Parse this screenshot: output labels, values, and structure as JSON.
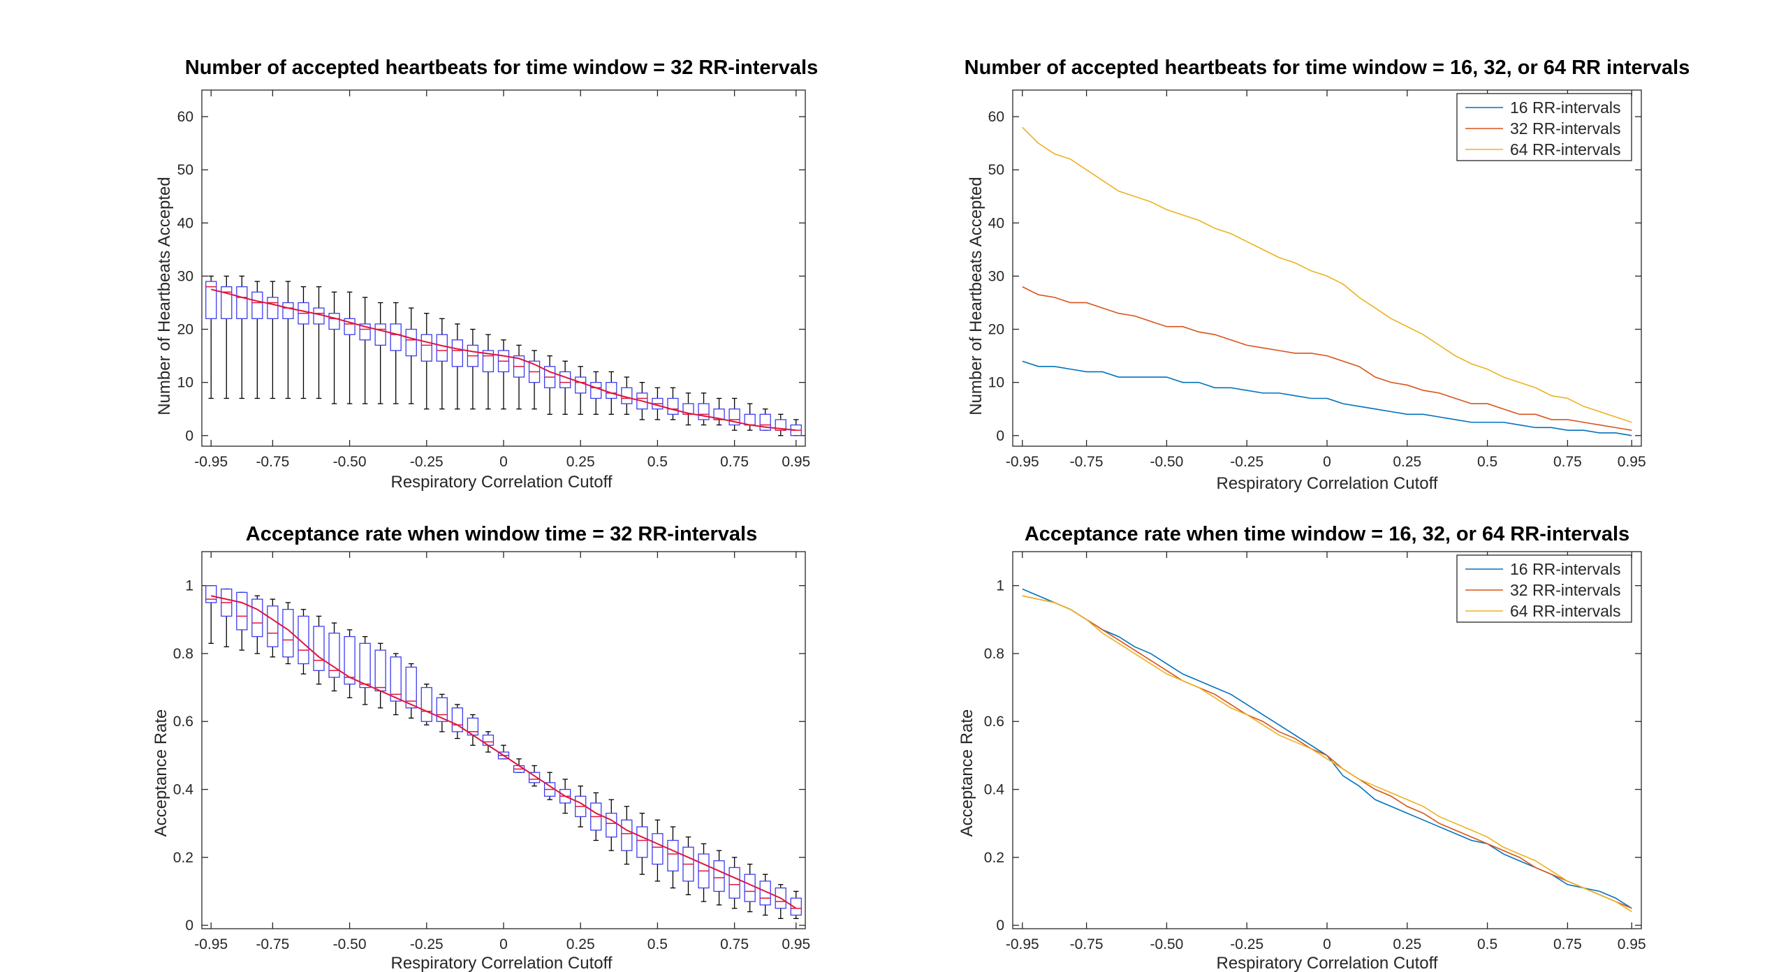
{
  "colors": {
    "series": [
      "#0072BD",
      "#D95319",
      "#EDB120"
    ],
    "median": "#E0143C",
    "box": "#3C3CF0",
    "whisker": "#000000",
    "axis": "#262626",
    "background": "#ffffff"
  },
  "chart_data": [
    {
      "id": "p1",
      "type": "box",
      "title": "Number of accepted heartbeats for time window = 32 RR-intervals",
      "xlabel": "Respiratory Correlation Cutoff",
      "ylabel": "Number of Heartbeats Accepted",
      "xlim": [
        -0.98,
        0.98
      ],
      "ylim": [
        -2,
        65
      ],
      "xticks": [
        -0.95,
        -0.75,
        -0.5,
        -0.25,
        0,
        0.25,
        0.5,
        0.75,
        0.95
      ],
      "xticklabels": [
        "-0.95",
        "-0.75",
        "-0.50",
        "-0.25",
        "0",
        "0.25",
        "0.5",
        "0.75",
        "0.95"
      ],
      "yticks": [
        0,
        10,
        20,
        30,
        40,
        50,
        60
      ],
      "yticklabels": [
        "0",
        "10",
        "20",
        "30",
        "40",
        "50",
        "60"
      ],
      "box_x": [
        -0.95,
        -0.9,
        -0.85,
        -0.8,
        -0.75,
        -0.7,
        -0.65,
        -0.6,
        -0.55,
        -0.5,
        -0.45,
        -0.4,
        -0.35,
        -0.3,
        -0.25,
        -0.2,
        -0.15,
        -0.1,
        -0.05,
        0.0,
        0.05,
        0.1,
        0.15,
        0.2,
        0.25,
        0.3,
        0.35,
        0.4,
        0.45,
        0.5,
        0.55,
        0.6,
        0.65,
        0.7,
        0.75,
        0.8,
        0.85,
        0.9,
        0.95
      ],
      "whisker_low": [
        7,
        7,
        7,
        7,
        7,
        7,
        7,
        7,
        6,
        6,
        6,
        6,
        6,
        6,
        5,
        5,
        5,
        5,
        5,
        5,
        5,
        5,
        4,
        4,
        4,
        4,
        4,
        4,
        3,
        3,
        3,
        2,
        2,
        2,
        1,
        1,
        1,
        0,
        0
      ],
      "q1": [
        22,
        22,
        22,
        22,
        22,
        22,
        21,
        21,
        20,
        19,
        18,
        17,
        16,
        15,
        14,
        14,
        13,
        13,
        12,
        12,
        11,
        10,
        9,
        9,
        8,
        7,
        7,
        6,
        5,
        5,
        4,
        4,
        3,
        3,
        2,
        2,
        1,
        1,
        0
      ],
      "median": [
        28,
        27,
        26,
        25,
        25,
        24,
        23,
        23,
        22,
        21,
        20,
        20,
        19,
        18,
        17,
        16,
        16,
        15,
        15,
        14,
        13,
        12,
        11,
        10,
        10,
        9,
        8,
        7,
        7,
        6,
        5,
        4,
        4,
        3,
        3,
        2,
        2,
        1,
        1
      ],
      "q3": [
        29,
        28,
        28,
        27,
        26,
        25,
        25,
        24,
        23,
        22,
        21,
        21,
        21,
        20,
        19,
        19,
        18,
        17,
        16,
        16,
        15,
        14,
        13,
        12,
        11,
        10,
        10,
        9,
        8,
        7,
        7,
        6,
        6,
        5,
        5,
        4,
        4,
        3,
        2
      ],
      "whisker_high": [
        30,
        30,
        30,
        29,
        29,
        29,
        28,
        28,
        27,
        27,
        26,
        25,
        25,
        24,
        23,
        22,
        21,
        20,
        19,
        18,
        17,
        16,
        15,
        14,
        13,
        12,
        12,
        11,
        10,
        9,
        9,
        8,
        8,
        7,
        7,
        6,
        5,
        4,
        3
      ],
      "median_line": [
        27.5,
        26.8,
        26.0,
        25.3,
        24.7,
        24.0,
        23.4,
        22.8,
        22.1,
        21.3,
        20.5,
        19.8,
        19.1,
        18.3,
        17.6,
        16.9,
        16.3,
        15.8,
        15.4,
        15.0,
        14.5,
        13.4,
        12.0,
        11.0,
        10.0,
        9.0,
        8.0,
        7.2,
        6.5,
        5.7,
        4.9,
        4.2,
        3.7,
        3.2,
        2.6,
        2.0,
        1.6,
        1.3,
        1.0
      ]
    },
    {
      "id": "p2",
      "type": "line",
      "title": "Number of accepted heartbeats for time window = 16, 32, or 64 RR intervals",
      "xlabel": "Respiratory Correlation Cutoff",
      "ylabel": "Number of Heartbeats Accepted",
      "xlim": [
        -0.98,
        0.98
      ],
      "ylim": [
        -2,
        65
      ],
      "xticks": [
        -0.95,
        -0.75,
        -0.5,
        -0.25,
        0,
        0.25,
        0.5,
        0.75,
        0.95
      ],
      "xticklabels": [
        "-0.95",
        "-0.75",
        "-0.50",
        "-0.25",
        "0",
        "0.25",
        "0.5",
        "0.75",
        "0.95"
      ],
      "yticks": [
        0,
        10,
        20,
        30,
        40,
        50,
        60
      ],
      "yticklabels": [
        "0",
        "10",
        "20",
        "30",
        "40",
        "50",
        "60"
      ],
      "x": [
        -0.95,
        -0.9,
        -0.85,
        -0.8,
        -0.75,
        -0.7,
        -0.65,
        -0.6,
        -0.55,
        -0.5,
        -0.45,
        -0.4,
        -0.35,
        -0.3,
        -0.25,
        -0.2,
        -0.15,
        -0.1,
        -0.05,
        0.0,
        0.05,
        0.1,
        0.15,
        0.2,
        0.25,
        0.3,
        0.35,
        0.4,
        0.45,
        0.5,
        0.55,
        0.6,
        0.65,
        0.7,
        0.75,
        0.8,
        0.85,
        0.9,
        0.95
      ],
      "series": [
        {
          "name": "16 RR-intervals",
          "values": [
            14,
            13,
            13,
            12.5,
            12,
            12,
            11,
            11,
            11,
            11,
            10,
            10,
            9,
            9,
            8.5,
            8,
            8,
            7.5,
            7,
            7,
            6,
            5.5,
            5,
            4.5,
            4,
            4,
            3.5,
            3,
            2.5,
            2.5,
            2.5,
            2,
            1.5,
            1.5,
            1,
            1,
            0.5,
            0.5,
            0
          ]
        },
        {
          "name": "32 RR-intervals",
          "values": [
            28,
            26.5,
            26,
            25,
            25,
            24,
            23,
            22.5,
            21.5,
            20.5,
            20.5,
            19.5,
            19,
            18,
            17,
            16.5,
            16,
            15.5,
            15.5,
            15,
            14,
            13,
            11,
            10,
            9.5,
            8.5,
            8,
            7,
            6,
            6,
            5,
            4,
            4,
            3,
            3,
            2.5,
            2,
            1.5,
            1
          ]
        },
        {
          "name": "64 RR-intervals",
          "values": [
            58,
            55,
            53,
            52,
            50,
            48,
            46,
            45,
            44,
            42.5,
            41.5,
            40.5,
            39,
            38,
            36.5,
            35,
            33.5,
            32.5,
            31,
            30,
            28.5,
            26,
            24,
            22,
            20.5,
            19,
            17,
            15,
            13.5,
            12.5,
            11,
            10,
            9,
            7.5,
            7,
            5.5,
            4.5,
            3.5,
            2.5
          ]
        }
      ],
      "legend": [
        "16 RR-intervals",
        "32 RR-intervals",
        "64 RR-intervals"
      ],
      "legend_position": "top-right"
    },
    {
      "id": "p3",
      "type": "box",
      "title": "Acceptance rate when window time = 32 RR-intervals",
      "xlabel": "Respiratory Correlation Cutoff",
      "ylabel": "Acceptance Rate",
      "xlim": [
        -0.98,
        0.98
      ],
      "ylim": [
        -0.01,
        1.1
      ],
      "xticks": [
        -0.95,
        -0.75,
        -0.5,
        -0.25,
        0,
        0.25,
        0.5,
        0.75,
        0.95
      ],
      "xticklabels": [
        "-0.95",
        "-0.75",
        "-0.50",
        "-0.25",
        "0",
        "0.25",
        "0.5",
        "0.75",
        "0.95"
      ],
      "yticks": [
        0,
        0.2,
        0.4,
        0.6,
        0.8,
        1
      ],
      "yticklabels": [
        "0",
        "0.2",
        "0.4",
        "0.6",
        "0.8",
        "1"
      ],
      "box_x": [
        -0.95,
        -0.9,
        -0.85,
        -0.8,
        -0.75,
        -0.7,
        -0.65,
        -0.6,
        -0.55,
        -0.5,
        -0.45,
        -0.4,
        -0.35,
        -0.3,
        -0.25,
        -0.2,
        -0.15,
        -0.1,
        -0.05,
        0.0,
        0.05,
        0.1,
        0.15,
        0.2,
        0.25,
        0.3,
        0.35,
        0.4,
        0.45,
        0.5,
        0.55,
        0.6,
        0.65,
        0.7,
        0.75,
        0.8,
        0.85,
        0.9,
        0.95
      ],
      "whisker_low": [
        0.83,
        0.82,
        0.81,
        0.8,
        0.79,
        0.77,
        0.74,
        0.71,
        0.69,
        0.67,
        0.65,
        0.64,
        0.62,
        0.61,
        0.59,
        0.57,
        0.55,
        0.53,
        0.51,
        0.49,
        0.45,
        0.41,
        0.37,
        0.33,
        0.29,
        0.25,
        0.22,
        0.18,
        0.15,
        0.13,
        0.11,
        0.09,
        0.07,
        0.06,
        0.05,
        0.04,
        0.03,
        0.02,
        0.02
      ],
      "q1": [
        0.95,
        0.91,
        0.87,
        0.85,
        0.82,
        0.79,
        0.77,
        0.75,
        0.73,
        0.71,
        0.7,
        0.69,
        0.66,
        0.64,
        0.6,
        0.6,
        0.57,
        0.56,
        0.53,
        0.49,
        0.45,
        0.42,
        0.38,
        0.36,
        0.32,
        0.28,
        0.26,
        0.22,
        0.2,
        0.18,
        0.16,
        0.13,
        0.11,
        0.1,
        0.08,
        0.07,
        0.06,
        0.05,
        0.03
      ],
      "median": [
        0.96,
        0.95,
        0.91,
        0.89,
        0.86,
        0.84,
        0.81,
        0.78,
        0.75,
        0.73,
        0.71,
        0.7,
        0.68,
        0.66,
        0.63,
        0.62,
        0.59,
        0.57,
        0.54,
        0.5,
        0.46,
        0.43,
        0.4,
        0.38,
        0.35,
        0.32,
        0.3,
        0.27,
        0.25,
        0.23,
        0.21,
        0.18,
        0.16,
        0.14,
        0.12,
        0.1,
        0.08,
        0.07,
        0.05
      ],
      "q3": [
        1.0,
        0.99,
        0.98,
        0.96,
        0.94,
        0.93,
        0.91,
        0.88,
        0.86,
        0.85,
        0.83,
        0.81,
        0.79,
        0.76,
        0.7,
        0.67,
        0.64,
        0.61,
        0.56,
        0.51,
        0.47,
        0.45,
        0.42,
        0.4,
        0.38,
        0.36,
        0.33,
        0.31,
        0.29,
        0.27,
        0.25,
        0.23,
        0.21,
        0.19,
        0.17,
        0.15,
        0.13,
        0.11,
        0.08
      ],
      "whisker_high": [
        1.0,
        0.99,
        0.98,
        0.97,
        0.96,
        0.95,
        0.93,
        0.91,
        0.89,
        0.87,
        0.85,
        0.83,
        0.8,
        0.77,
        0.71,
        0.68,
        0.65,
        0.62,
        0.57,
        0.53,
        0.49,
        0.47,
        0.45,
        0.43,
        0.41,
        0.39,
        0.37,
        0.35,
        0.33,
        0.31,
        0.29,
        0.26,
        0.24,
        0.22,
        0.2,
        0.18,
        0.15,
        0.12,
        0.1
      ],
      "median_line": [
        0.97,
        0.96,
        0.95,
        0.93,
        0.9,
        0.87,
        0.83,
        0.79,
        0.76,
        0.73,
        0.71,
        0.69,
        0.67,
        0.65,
        0.63,
        0.61,
        0.59,
        0.56,
        0.53,
        0.5,
        0.47,
        0.44,
        0.41,
        0.38,
        0.36,
        0.33,
        0.31,
        0.28,
        0.26,
        0.24,
        0.22,
        0.2,
        0.18,
        0.16,
        0.14,
        0.12,
        0.1,
        0.08,
        0.05
      ]
    },
    {
      "id": "p4",
      "type": "line",
      "title": "Acceptance rate when time window = 16, 32, or 64 RR-intervals",
      "xlabel": "Respiratory Correlation Cutoff",
      "ylabel": "Acceptance Rate",
      "xlim": [
        -0.98,
        0.98
      ],
      "ylim": [
        -0.01,
        1.1
      ],
      "xticks": [
        -0.95,
        -0.75,
        -0.5,
        -0.25,
        0,
        0.25,
        0.5,
        0.75,
        0.95
      ],
      "xticklabels": [
        "-0.95",
        "-0.75",
        "-0.50",
        "-0.25",
        "0",
        "0.25",
        "0.5",
        "0.75",
        "0.95"
      ],
      "yticks": [
        0,
        0.2,
        0.4,
        0.6,
        0.8,
        1
      ],
      "yticklabels": [
        "0",
        "0.2",
        "0.4",
        "0.6",
        "0.8",
        "1"
      ],
      "x": [
        -0.95,
        -0.9,
        -0.85,
        -0.8,
        -0.75,
        -0.7,
        -0.65,
        -0.6,
        -0.55,
        -0.5,
        -0.45,
        -0.4,
        -0.35,
        -0.3,
        -0.25,
        -0.2,
        -0.15,
        -0.1,
        -0.05,
        0.0,
        0.05,
        0.1,
        0.15,
        0.2,
        0.25,
        0.3,
        0.35,
        0.4,
        0.45,
        0.5,
        0.55,
        0.6,
        0.65,
        0.7,
        0.75,
        0.8,
        0.85,
        0.9,
        0.95
      ],
      "series": [
        {
          "name": "16 RR-intervals",
          "values": [
            0.99,
            0.97,
            0.95,
            0.93,
            0.9,
            0.87,
            0.85,
            0.82,
            0.8,
            0.77,
            0.74,
            0.72,
            0.7,
            0.68,
            0.65,
            0.62,
            0.59,
            0.56,
            0.53,
            0.5,
            0.44,
            0.41,
            0.37,
            0.35,
            0.33,
            0.31,
            0.29,
            0.27,
            0.25,
            0.24,
            0.21,
            0.19,
            0.17,
            0.15,
            0.12,
            0.11,
            0.1,
            0.08,
            0.05
          ]
        },
        {
          "name": "32 RR-intervals",
          "values": [
            0.97,
            0.96,
            0.95,
            0.93,
            0.9,
            0.87,
            0.84,
            0.81,
            0.78,
            0.75,
            0.72,
            0.7,
            0.68,
            0.65,
            0.62,
            0.6,
            0.57,
            0.55,
            0.52,
            0.5,
            0.46,
            0.43,
            0.4,
            0.38,
            0.35,
            0.33,
            0.3,
            0.28,
            0.26,
            0.24,
            0.22,
            0.2,
            0.17,
            0.15,
            0.13,
            0.11,
            0.09,
            0.07,
            0.05
          ]
        },
        {
          "name": "64 RR-intervals",
          "values": [
            0.97,
            0.96,
            0.95,
            0.93,
            0.9,
            0.86,
            0.83,
            0.8,
            0.77,
            0.74,
            0.72,
            0.7,
            0.67,
            0.64,
            0.62,
            0.59,
            0.56,
            0.54,
            0.52,
            0.49,
            0.46,
            0.43,
            0.41,
            0.39,
            0.37,
            0.35,
            0.32,
            0.3,
            0.28,
            0.26,
            0.23,
            0.21,
            0.19,
            0.16,
            0.13,
            0.11,
            0.09,
            0.07,
            0.04
          ]
        }
      ],
      "legend": [
        "16 RR-intervals",
        "32 RR-intervals",
        "64 RR-intervals"
      ],
      "legend_position": "top-right"
    }
  ]
}
